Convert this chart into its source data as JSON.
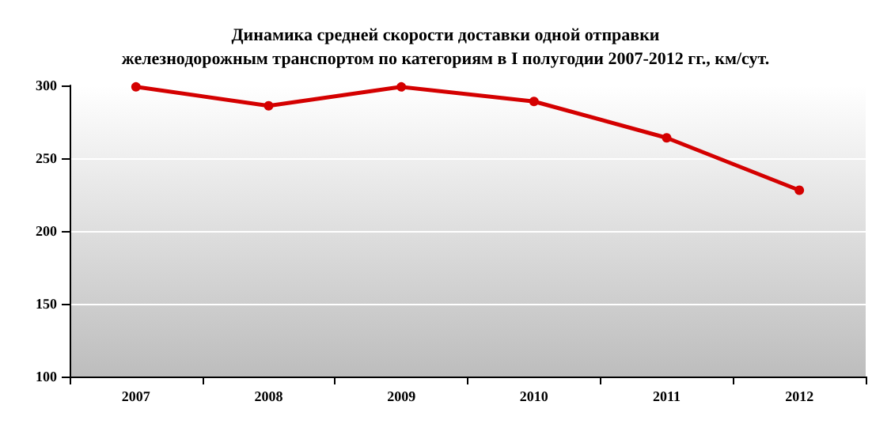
{
  "chart_data": {
    "type": "line",
    "title": "Динамика средней скорости доставки одной отправки\nжелезнодорожным транспортом по категориям в I полугодии 2007-2012 гг., км/сут.",
    "categories": [
      "2007",
      "2008",
      "2009",
      "2010",
      "2011",
      "2012"
    ],
    "series": [
      {
        "color": "#d40000",
        "values": [
          299,
          286,
          299,
          289,
          264,
          228
        ]
      }
    ],
    "ylim": [
      100,
      300
    ],
    "yticks": [
      100,
      150,
      200,
      250,
      300
    ],
    "grid": "y",
    "marker": "circle",
    "line_style": "solid"
  }
}
